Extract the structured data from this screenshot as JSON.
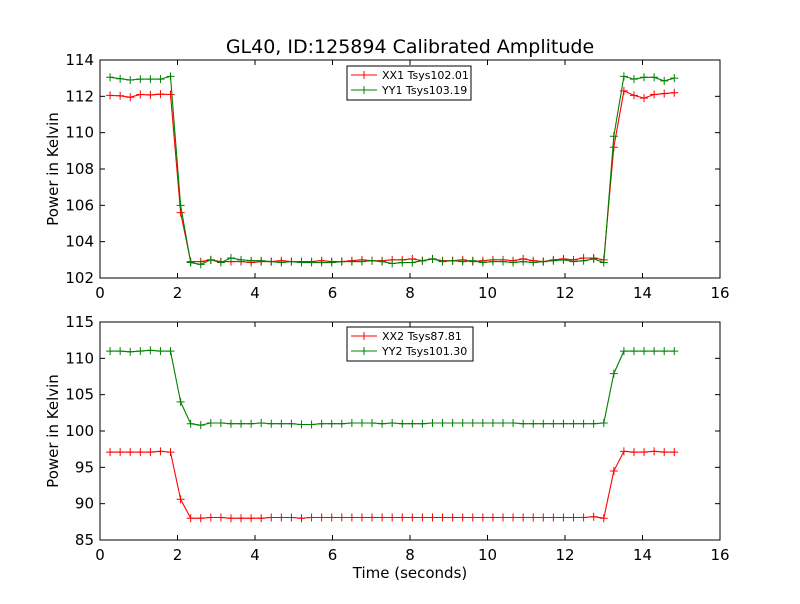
{
  "title": "GL40, ID:125894 Calibrated Amplitude",
  "colors": {
    "xx": "#ff0000",
    "yy": "#008000"
  },
  "chart_data": [
    {
      "type": "line",
      "title": "GL40, ID:125894 Calibrated Amplitude",
      "xlabel": "",
      "ylabel": "Power in Kelvin",
      "xlim": [
        0,
        16
      ],
      "ylim": [
        102,
        114
      ],
      "xticks": [
        "0",
        "2",
        "4",
        "6",
        "8",
        "10",
        "12",
        "14",
        "16"
      ],
      "yticks": [
        "102",
        "104",
        "106",
        "108",
        "110",
        "112",
        "114"
      ],
      "grid": false,
      "legend_position": "top-center",
      "x": [
        0.26,
        0.52,
        0.78,
        1.04,
        1.3,
        1.56,
        1.82,
        2.08,
        2.34,
        2.6,
        2.86,
        3.12,
        3.38,
        3.64,
        3.9,
        4.16,
        4.42,
        4.68,
        4.94,
        5.2,
        5.46,
        5.72,
        5.98,
        6.24,
        6.5,
        6.76,
        7.02,
        7.28,
        7.54,
        7.8,
        8.06,
        8.32,
        8.58,
        8.84,
        9.1,
        9.36,
        9.62,
        9.88,
        10.14,
        10.4,
        10.66,
        10.92,
        11.18,
        11.44,
        11.7,
        11.96,
        12.22,
        12.48,
        12.74,
        13.0,
        13.26,
        13.52,
        13.78,
        14.04,
        14.3,
        14.56,
        14.82
      ],
      "series": [
        {
          "name": "XX1 Tsys102.01",
          "color": "#ff0000",
          "values": [
            112.05,
            112.03,
            111.95,
            112.1,
            112.08,
            112.12,
            112.1,
            105.6,
            102.9,
            102.9,
            103.0,
            102.9,
            102.9,
            102.9,
            102.85,
            102.9,
            102.9,
            102.95,
            102.9,
            102.9,
            102.9,
            102.95,
            102.9,
            102.9,
            102.95,
            103.0,
            102.95,
            102.95,
            103.0,
            103.0,
            103.05,
            102.95,
            103.05,
            102.95,
            102.95,
            103.0,
            102.9,
            102.95,
            103.0,
            103.0,
            102.95,
            103.05,
            102.95,
            102.9,
            103.0,
            103.05,
            103.0,
            103.1,
            103.1,
            103.0,
            109.2,
            112.3,
            112.05,
            111.9,
            112.1,
            112.15,
            112.2
          ]
        },
        {
          "name": "YY1 Tsys103.19",
          "color": "#008000",
          "values": [
            113.05,
            112.97,
            112.9,
            112.95,
            112.95,
            112.95,
            113.1,
            106.0,
            102.85,
            102.75,
            103.0,
            102.85,
            103.1,
            103.0,
            102.95,
            102.95,
            102.9,
            102.85,
            102.9,
            102.85,
            102.85,
            102.85,
            102.85,
            102.9,
            102.9,
            102.9,
            102.95,
            102.9,
            102.8,
            102.85,
            102.85,
            102.95,
            103.05,
            102.9,
            102.95,
            102.9,
            102.95,
            102.85,
            102.9,
            102.9,
            102.85,
            102.9,
            102.85,
            102.9,
            102.95,
            103.0,
            102.9,
            102.95,
            103.05,
            102.85,
            109.8,
            113.1,
            112.95,
            113.05,
            113.05,
            112.85,
            113.0
          ]
        }
      ]
    },
    {
      "type": "line",
      "title": "",
      "xlabel": "Time (seconds)",
      "ylabel": "Power in Kelvin",
      "xlim": [
        0,
        16
      ],
      "ylim": [
        85,
        115
      ],
      "xticks": [
        "0",
        "2",
        "4",
        "6",
        "8",
        "10",
        "12",
        "14",
        "16"
      ],
      "yticks": [
        "85",
        "90",
        "95",
        "100",
        "105",
        "110",
        "115"
      ],
      "grid": false,
      "legend_position": "top-center",
      "x": [
        0.26,
        0.52,
        0.78,
        1.04,
        1.3,
        1.56,
        1.82,
        2.08,
        2.34,
        2.6,
        2.86,
        3.12,
        3.38,
        3.64,
        3.9,
        4.16,
        4.42,
        4.68,
        4.94,
        5.2,
        5.46,
        5.72,
        5.98,
        6.24,
        6.5,
        6.76,
        7.02,
        7.28,
        7.54,
        7.8,
        8.06,
        8.32,
        8.58,
        8.84,
        9.1,
        9.36,
        9.62,
        9.88,
        10.14,
        10.4,
        10.66,
        10.92,
        11.18,
        11.44,
        11.7,
        11.96,
        12.22,
        12.48,
        12.74,
        13.0,
        13.26,
        13.52,
        13.78,
        14.04,
        14.3,
        14.56,
        14.82
      ],
      "series": [
        {
          "name": "XX2 Tsys87.81",
          "color": "#ff0000",
          "values": [
            97.1,
            97.1,
            97.1,
            97.1,
            97.1,
            97.2,
            97.1,
            90.6,
            88.0,
            88.0,
            88.1,
            88.1,
            88.0,
            88.0,
            88.0,
            88.0,
            88.1,
            88.1,
            88.1,
            88.0,
            88.1,
            88.1,
            88.1,
            88.1,
            88.1,
            88.1,
            88.1,
            88.1,
            88.1,
            88.1,
            88.1,
            88.1,
            88.1,
            88.1,
            88.1,
            88.1,
            88.1,
            88.1,
            88.1,
            88.1,
            88.1,
            88.1,
            88.1,
            88.1,
            88.1,
            88.1,
            88.1,
            88.1,
            88.2,
            88.0,
            94.5,
            97.2,
            97.1,
            97.1,
            97.2,
            97.1,
            97.1
          ]
        },
        {
          "name": "YY2 Tsys101.30",
          "color": "#008000",
          "values": [
            111.0,
            111.0,
            110.9,
            111.0,
            111.1,
            111.0,
            111.0,
            104.0,
            101.0,
            100.8,
            101.1,
            101.1,
            101.0,
            101.0,
            101.0,
            101.1,
            101.0,
            101.0,
            101.0,
            100.9,
            100.9,
            101.0,
            101.0,
            101.0,
            101.1,
            101.1,
            101.1,
            101.0,
            101.1,
            101.0,
            101.0,
            101.0,
            101.1,
            101.1,
            101.1,
            101.1,
            101.1,
            101.1,
            101.1,
            101.1,
            101.1,
            101.0,
            101.0,
            101.0,
            101.0,
            101.0,
            101.0,
            101.0,
            101.0,
            101.1,
            107.9,
            111.0,
            111.0,
            111.0,
            111.0,
            111.0,
            111.0
          ]
        }
      ]
    }
  ]
}
